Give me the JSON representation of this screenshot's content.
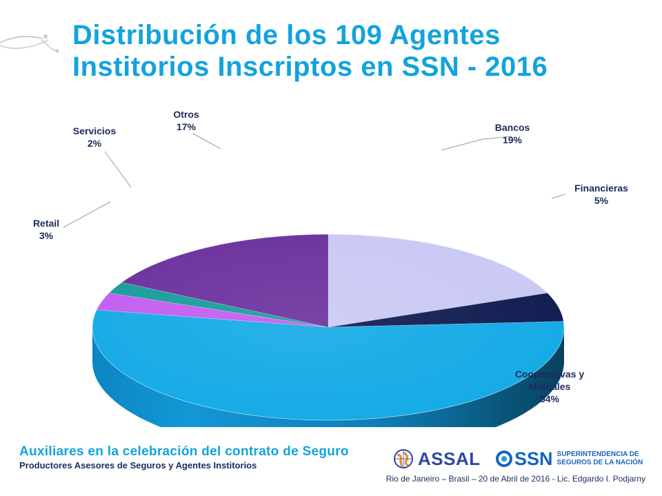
{
  "slide": {
    "title_line1": "Distribución de los 109 Agentes",
    "title_line2": "Institorios Inscriptos en SSN - 2016"
  },
  "chart_data": {
    "type": "pie",
    "title": "",
    "slices": [
      {
        "label": "Bancos",
        "pct_label": "19%",
        "value": 19,
        "color": "#c8c8f4"
      },
      {
        "label": "Financieras",
        "pct_label": "5%",
        "value": 5,
        "color": "#0d1a4f"
      },
      {
        "label": "Cooperativas y Mutuales",
        "label_line1": "Cooperativas y",
        "label_line2": "Mutuales",
        "pct_label": "54%",
        "value": 54,
        "color": "#12a9e6"
      },
      {
        "label": "Retail",
        "pct_label": "3%",
        "value": 3,
        "color": "#c25cf0"
      },
      {
        "label": "Servicios",
        "pct_label": "2%",
        "value": 2,
        "color": "#169a9a"
      },
      {
        "label": "Otros",
        "pct_label": "17%",
        "value": 17,
        "color": "#6a2e9c"
      }
    ]
  },
  "footer": {
    "main_text": "Auxiliares en la celebración del contrato de Seguro",
    "sub_text": "Productores Asesores de Seguros y Agentes Institorios",
    "credit": "Rio de Janeiro – Brasil – 20 de Abril de 2016 - Lic. Edgardo I. Podjarny",
    "logo_assal": "ASSAL",
    "logo_ssn": "SSN",
    "ssn_full_line1": "SUPERINTENDENCIA DE",
    "ssn_full_line2": "SEGUROS DE LA NACIÓN",
    "icon_globe": "globe-icon",
    "icon_ssn_mark": "ssn-ring-icon"
  }
}
